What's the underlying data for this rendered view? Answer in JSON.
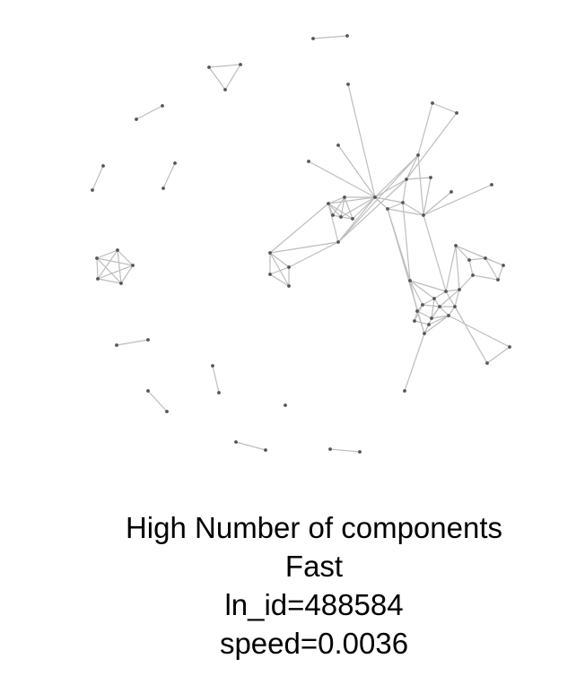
{
  "caption": {
    "line1": "High Number of components",
    "line2": "Fast",
    "line3": "ln_id=488584",
    "line4": "speed=0.0036"
  },
  "colors": {
    "edge": "#bdbdbd",
    "node": "#555555",
    "text": "#000000",
    "background": "#ffffff"
  }
}
